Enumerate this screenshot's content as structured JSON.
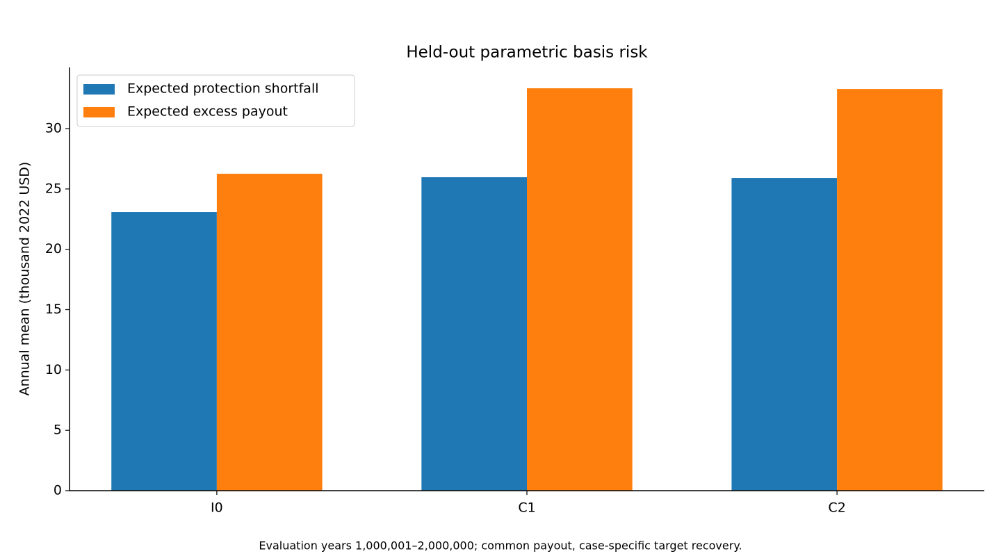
{
  "chart_data": {
    "type": "bar",
    "title": "Held-out parametric basis risk",
    "ylabel": "Annual mean (thousand 2022 USD)",
    "footnote": "Evaluation years 1,000,001–2,000,000; common payout, case-specific target recovery.",
    "categories": [
      "I0",
      "C1",
      "C2"
    ],
    "series": [
      {
        "name": "Expected protection shortfall",
        "color": "#1f77b4",
        "values": [
          23.09,
          25.97,
          25.91
        ]
      },
      {
        "name": "Expected excess payout",
        "color": "#ff7f0e",
        "values": [
          26.26,
          33.34,
          33.28
        ]
      }
    ],
    "ylim": [
      0,
      35.07
    ],
    "yticks": [
      0,
      5,
      10,
      15,
      20,
      25,
      30
    ],
    "grid": false,
    "legend": "upper left"
  }
}
